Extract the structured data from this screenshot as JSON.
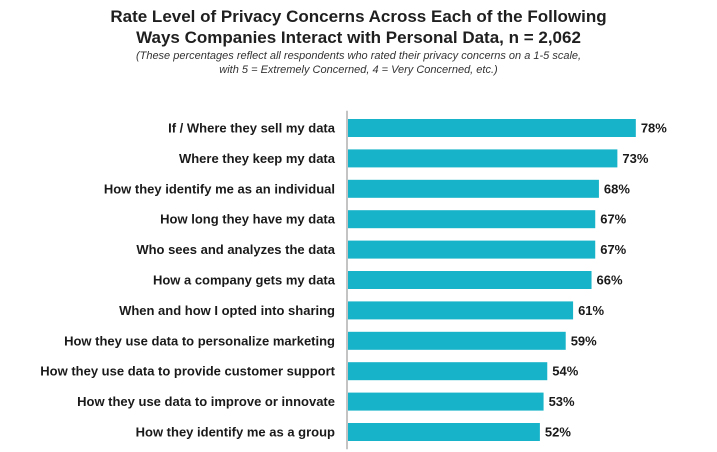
{
  "title_line1": "Rate Level of Privacy Concerns Across Each of the Following",
  "title_line2": "Ways Companies Interact with Personal Data, n = 2,062",
  "subtitle_line1": "(These percentages reflect all respondents who rated their privacy concerns on a 1-5 scale,",
  "subtitle_line2": "with 5 = Extremely Concerned, 4 = Very Concerned, etc.)",
  "bar_color": "#17b3c9",
  "chart_data": {
    "type": "bar",
    "orientation": "horizontal",
    "title": "Rate Level of Privacy Concerns Across Each of the Following Ways Companies Interact with Personal Data, n = 2,062",
    "xlabel": "",
    "ylabel": "",
    "xlim": [
      0,
      80
    ],
    "grid": false,
    "categories": [
      "If / Where they sell my data",
      "Where they keep my data",
      "How they identify me as an individual",
      "How long they have my data",
      "Who sees and analyzes the data",
      "How a company gets my data",
      "When and how I opted into sharing",
      "How they use data to personalize marketing",
      "How they use data to provide customer support",
      "How they use data to improve or innovate",
      "How they identify me as a group"
    ],
    "values": [
      78,
      73,
      68,
      67,
      67,
      66,
      61,
      59,
      54,
      53,
      52
    ],
    "value_labels": [
      "78%",
      "73%",
      "68%",
      "67%",
      "67%",
      "66%",
      "61%",
      "59%",
      "54%",
      "53%",
      "52%"
    ]
  }
}
